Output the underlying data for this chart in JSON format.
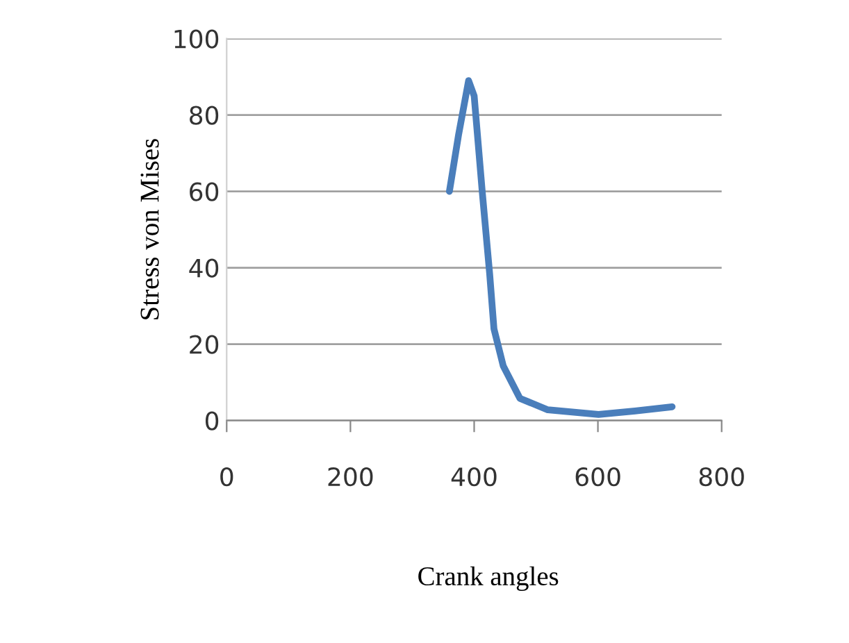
{
  "chart_data": {
    "type": "line",
    "xlabel": "Crank angles",
    "ylabel": "Stress von Mises",
    "x": [
      360,
      375,
      391,
      400,
      413,
      425,
      432,
      447,
      474,
      519,
      601,
      660,
      720
    ],
    "series": [
      {
        "color": "#4a7ebb",
        "values": [
          60,
          75,
          89,
          85,
          60,
          38.5,
          24,
          14.3,
          5.8,
          2.8,
          1.6,
          2.5,
          3.6
        ]
      }
    ],
    "xlim": [
      0,
      800
    ],
    "ylim": [
      0,
      100
    ],
    "xticks": [
      0,
      200,
      400,
      600,
      800
    ],
    "yticks": [
      0,
      20,
      40,
      60,
      80,
      100
    ],
    "grid": "y",
    "marker": "none",
    "line_style": "solid"
  }
}
